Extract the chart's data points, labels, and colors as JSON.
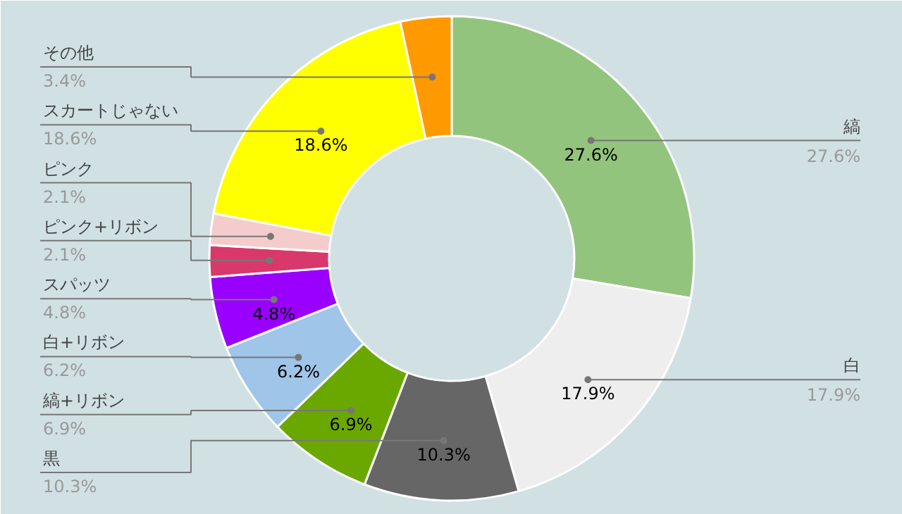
{
  "chart_data": {
    "type": "donut",
    "categories": [
      "縞",
      "白",
      "黒",
      "縞+リボン",
      "白+リボン",
      "スパッツ",
      "ピンク+リボン",
      "ピンク",
      "スカートじゃない",
      "その他"
    ],
    "values": [
      27.6,
      17.9,
      10.3,
      6.9,
      6.2,
      4.8,
      2.1,
      2.1,
      18.6,
      3.4
    ],
    "colors": [
      "#93c47d",
      "#eeeeee",
      "#666666",
      "#6aa800",
      "#9fc5e8",
      "#9900ff",
      "#d9386a",
      "#f4cccc",
      "#ffff00",
      "#ff9900"
    ],
    "value_labels": [
      "27.6%",
      "17.9%",
      "10.3%",
      "6.9%",
      "6.2%",
      "4.8%",
      "2.1%",
      "2.1%",
      "18.6%",
      "3.4%"
    ],
    "data_labels": true
  }
}
